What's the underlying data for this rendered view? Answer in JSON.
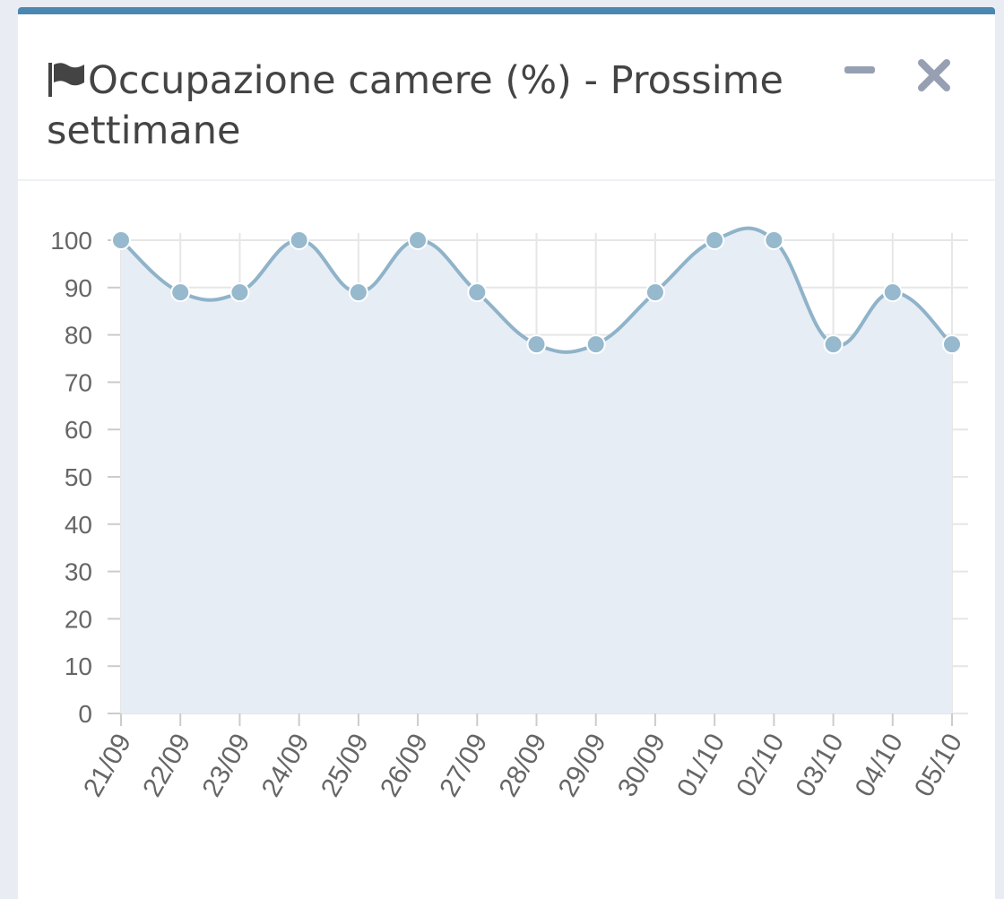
{
  "chart_data": {
    "type": "line",
    "title": "Occupazione camere (%) - Prossime settimane",
    "categories": [
      "21/09",
      "22/09",
      "23/09",
      "24/09",
      "25/09",
      "26/09",
      "27/09",
      "28/09",
      "29/09",
      "30/09",
      "01/10",
      "02/10",
      "03/10",
      "04/10",
      "05/10"
    ],
    "values": [
      100,
      89,
      89,
      100,
      89,
      100,
      89,
      78,
      78,
      89,
      100,
      100,
      78,
      89,
      78
    ],
    "color": "#8fb3c9",
    "fill": "#e6edf5",
    "ylim": [
      0,
      100
    ],
    "yticks": [
      0,
      10,
      20,
      30,
      40,
      50,
      60,
      70,
      80,
      90,
      100
    ],
    "grid": true
  }
}
